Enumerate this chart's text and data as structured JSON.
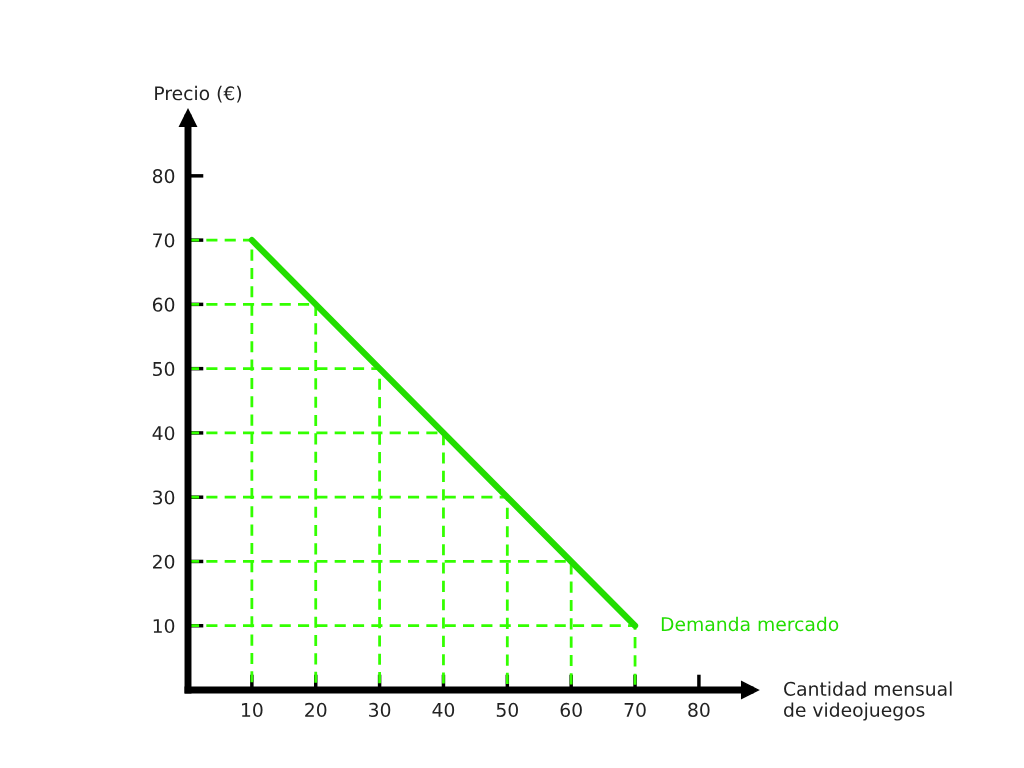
{
  "chart_data": {
    "type": "line",
    "xlabel": "Cantidad mensual\nde videojuegos",
    "ylabel": "Precio (€)",
    "xlim": [
      0,
      88
    ],
    "ylim": [
      0,
      89
    ],
    "xticks": [
      10,
      20,
      30,
      40,
      50,
      60,
      70,
      80
    ],
    "yticks": [
      10,
      20,
      30,
      40,
      50,
      60,
      70,
      80
    ],
    "grid": false,
    "legend": false,
    "marker": "none",
    "line_style": "solid",
    "series": [
      {
        "name": "Demanda mercado",
        "color": "#22dd00",
        "x": [
          10,
          20,
          30,
          40,
          50,
          60,
          70
        ],
        "values": [
          70,
          60,
          50,
          40,
          30,
          20,
          10
        ]
      },
      {
        "color": "#33ff00",
        "line_style": "dashed",
        "x": [
          0,
          10,
          10
        ],
        "values": [
          70,
          70,
          0
        ]
      },
      {
        "color": "#33ff00",
        "line_style": "dashed",
        "x": [
          0,
          20,
          20
        ],
        "values": [
          60,
          60,
          0
        ]
      },
      {
        "color": "#33ff00",
        "line_style": "dashed",
        "x": [
          0,
          30,
          30
        ],
        "values": [
          50,
          50,
          0
        ]
      },
      {
        "color": "#33ff00",
        "line_style": "dashed",
        "x": [
          0,
          40,
          40
        ],
        "values": [
          40,
          40,
          0
        ]
      },
      {
        "color": "#33ff00",
        "line_style": "dashed",
        "x": [
          0,
          50,
          50
        ],
        "values": [
          30,
          30,
          0
        ]
      },
      {
        "color": "#33ff00",
        "line_style": "dashed",
        "x": [
          0,
          60,
          60
        ],
        "values": [
          20,
          20,
          0
        ]
      },
      {
        "color": "#33ff00",
        "line_style": "dashed",
        "x": [
          0,
          70,
          70
        ],
        "values": [
          10,
          10,
          0
        ]
      }
    ]
  }
}
